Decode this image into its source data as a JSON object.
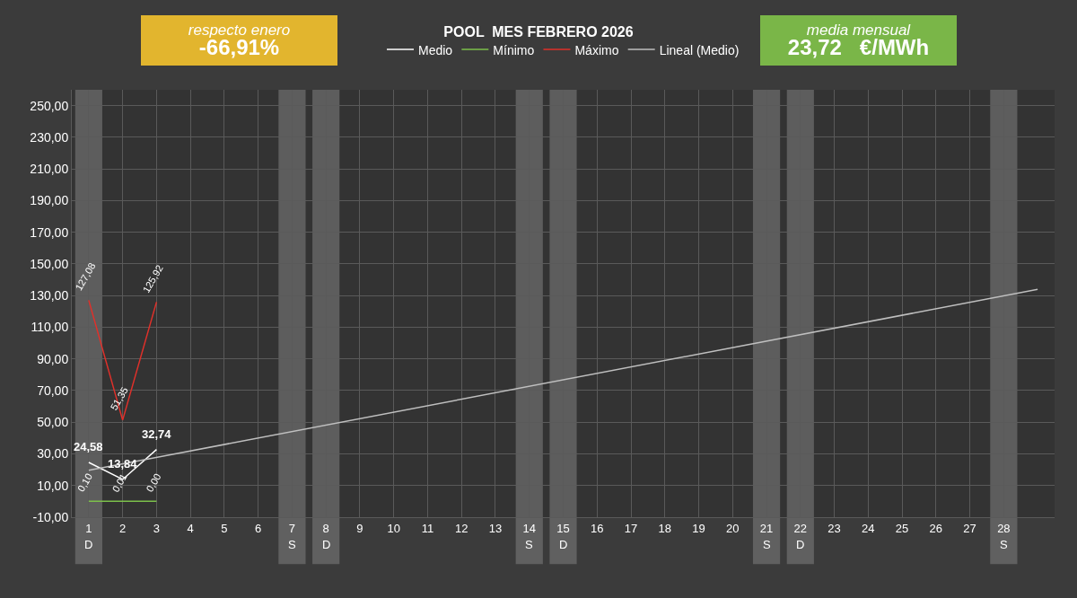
{
  "chart_data": {
    "type": "line",
    "title": "POOL  MES FEBRERO 2026",
    "x": [
      1,
      2,
      3
    ],
    "series": [
      {
        "name": "Medio",
        "color": "#ffffff",
        "values": [
          24.58,
          13.84,
          32.74
        ],
        "value_labels": [
          "24,58",
          "13,84",
          "32,74"
        ]
      },
      {
        "name": "Mínimo",
        "color": "#7cc04b",
        "values": [
          0.1,
          0.01,
          0.0
        ],
        "value_labels": [
          "0,10",
          "0,01",
          "0,00"
        ]
      },
      {
        "name": "Máximo",
        "color": "#e0302a",
        "values": [
          127.08,
          51.35,
          125.92
        ],
        "value_labels": [
          "127,08",
          "51,35",
          "125,92"
        ]
      },
      {
        "name": "Lineal (Medio)",
        "color": "#bfbfbf",
        "type": "line",
        "x": [
          1,
          29
        ],
        "values": [
          19.6,
          133.9
        ]
      }
    ],
    "xlim": [
      0.5,
      29.5
    ],
    "xticks": [
      1,
      2,
      3,
      4,
      5,
      6,
      7,
      8,
      9,
      10,
      11,
      12,
      13,
      14,
      15,
      16,
      17,
      18,
      19,
      20,
      21,
      22,
      23,
      24,
      25,
      26,
      27,
      28
    ],
    "ylim": [
      -10,
      260
    ],
    "yticks": [
      {
        "value": -10,
        "label": "-10,00"
      },
      {
        "value": 10,
        "label": "10,00"
      },
      {
        "value": 30,
        "label": "30,00"
      },
      {
        "value": 50,
        "label": "50,00"
      },
      {
        "value": 70,
        "label": "70,00"
      },
      {
        "value": 90,
        "label": "90,00"
      },
      {
        "value": 110,
        "label": "110,00"
      },
      {
        "value": 130,
        "label": "130,00"
      },
      {
        "value": 150,
        "label": "150,00"
      },
      {
        "value": 170,
        "label": "170,00"
      },
      {
        "value": 190,
        "label": "190,00"
      },
      {
        "value": 210,
        "label": "210,00"
      },
      {
        "value": 230,
        "label": "230,00"
      },
      {
        "value": 250,
        "label": "250,00"
      }
    ],
    "bands": [
      {
        "axis": "x",
        "from": 0.6,
        "to": 1.4,
        "label": "D",
        "color": "#808080"
      },
      {
        "axis": "x",
        "from": 6.6,
        "to": 7.4,
        "label": "S",
        "color": "#808080"
      },
      {
        "axis": "x",
        "from": 7.6,
        "to": 8.4,
        "label": "D",
        "color": "#808080"
      },
      {
        "axis": "x",
        "from": 13.6,
        "to": 14.4,
        "label": "S",
        "color": "#808080"
      },
      {
        "axis": "x",
        "from": 14.6,
        "to": 15.4,
        "label": "D",
        "color": "#808080"
      },
      {
        "axis": "x",
        "from": 20.6,
        "to": 21.4,
        "label": "S",
        "color": "#808080"
      },
      {
        "axis": "x",
        "from": 21.6,
        "to": 22.4,
        "label": "D",
        "color": "#808080"
      },
      {
        "axis": "x",
        "from": 27.6,
        "to": 28.4,
        "label": "S",
        "color": "#808080"
      }
    ],
    "annotations": [
      "respecto enero\n-66,91%",
      "media mensual\n23,72   €/MWh"
    ],
    "grid": true,
    "legend": "top",
    "marker": "none",
    "line_style": "solid"
  }
}
